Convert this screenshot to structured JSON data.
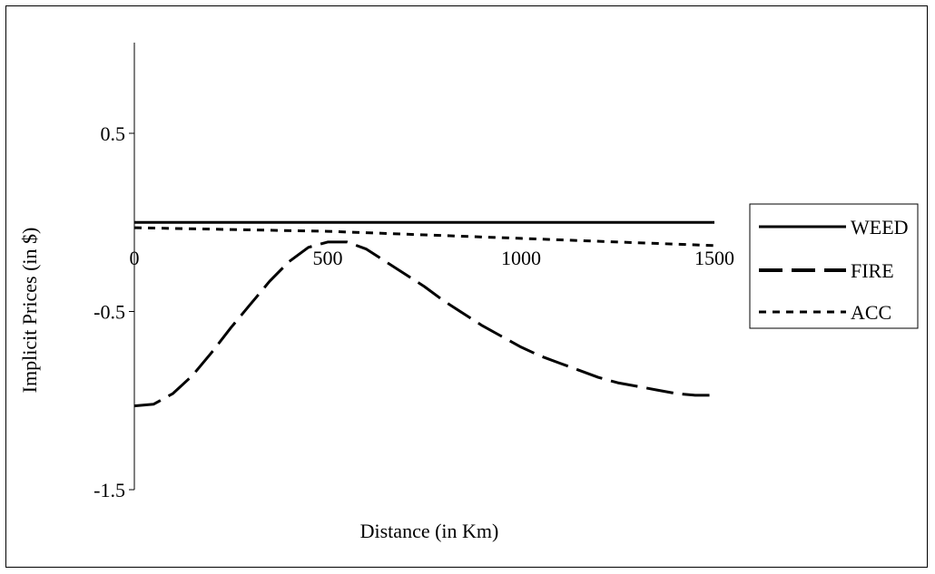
{
  "chart_data": {
    "type": "line",
    "title": "",
    "xlabel": "Distance (in Km)",
    "ylabel": "Implicit Prices (in $)",
    "xlim": [
      0,
      1500
    ],
    "ylim": [
      -1.5,
      1.0
    ],
    "x_ticks": [
      0,
      500,
      1000,
      1500
    ],
    "x_tick_labels": [
      "0",
      "500",
      "1000",
      "1500"
    ],
    "y_ticks": [
      0.5,
      -0.5,
      -1.5
    ],
    "y_tick_labels": [
      "0.5",
      "-0.5",
      "-1.5"
    ],
    "grid": false,
    "legend_position": "right",
    "series": [
      {
        "name": "WEED",
        "style": "solid",
        "color": "#000000",
        "x": [
          0,
          250,
          500,
          750,
          1000,
          1250,
          1500
        ],
        "values": [
          0.0,
          0.0,
          0.0,
          0.0,
          0.0,
          0.0,
          0.0
        ]
      },
      {
        "name": "FIRE",
        "style": "long-dash",
        "color": "#000000",
        "x": [
          0,
          50,
          100,
          150,
          200,
          250,
          300,
          350,
          400,
          450,
          500,
          550,
          600,
          650,
          700,
          750,
          800,
          850,
          900,
          950,
          1000,
          1050,
          1100,
          1150,
          1200,
          1250,
          1300,
          1350,
          1400,
          1450,
          1500
        ],
        "values": [
          -1.03,
          -1.02,
          -0.96,
          -0.86,
          -0.73,
          -0.59,
          -0.46,
          -0.33,
          -0.22,
          -0.14,
          -0.11,
          -0.11,
          -0.15,
          -0.22,
          -0.29,
          -0.36,
          -0.44,
          -0.51,
          -0.58,
          -0.64,
          -0.7,
          -0.75,
          -0.79,
          -0.83,
          -0.87,
          -0.9,
          -0.92,
          -0.94,
          -0.96,
          -0.97,
          -0.97
        ]
      },
      {
        "name": "ACC",
        "style": "short-dash",
        "color": "#000000",
        "x": [
          0,
          250,
          500,
          750,
          1000,
          1250,
          1500
        ],
        "values": [
          -0.03,
          -0.04,
          -0.05,
          -0.07,
          -0.09,
          -0.11,
          -0.13
        ]
      }
    ]
  }
}
